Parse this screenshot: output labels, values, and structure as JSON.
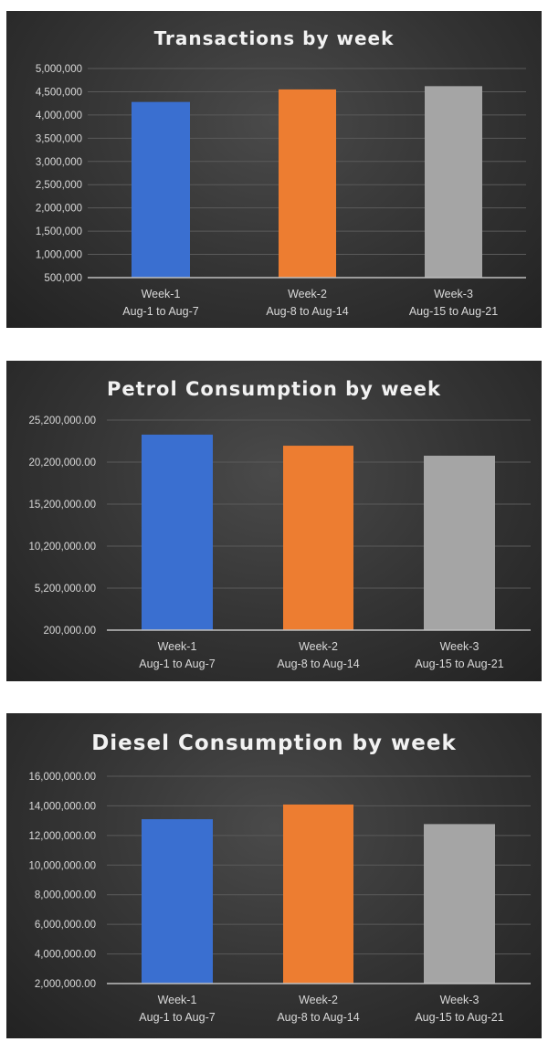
{
  "chart_data": [
    {
      "type": "bar",
      "title": "Transactions by week",
      "categories": [
        [
          "Week-1",
          "Aug-1 to Aug-7"
        ],
        [
          "Week-2",
          "Aug-8 to Aug-14"
        ],
        [
          "Week-3",
          "Aug-15 to Aug-21"
        ]
      ],
      "values": [
        4280000,
        4550000,
        4620000
      ],
      "yticks": [
        "500,000",
        "1,000,000",
        "1,500,000",
        "2,000,000",
        "2,500,000",
        "3,000,000",
        "3,500,000",
        "4,000,000",
        "4,500,000",
        "5,000,000"
      ],
      "ylim": [
        500000,
        5000000
      ],
      "grid": true,
      "colors": [
        "#3a6fd0",
        "#ed7d31",
        "#a5a5a5"
      ]
    },
    {
      "type": "bar",
      "title": "Petrol Consumption by week",
      "categories": [
        [
          "Week-1",
          "Aug-1 to Aug-7"
        ],
        [
          "Week-2",
          "Aug-8 to Aug-14"
        ],
        [
          "Week-3",
          "Aug-15 to Aug-21"
        ]
      ],
      "values": [
        23470000,
        22150000,
        20960000
      ],
      "yticks": [
        "200,000.00",
        "5,200,000.00",
        "10,200,000.00",
        "15,200,000.00",
        "20,200,000.00",
        "25,200,000.00"
      ],
      "ylim": [
        200000,
        25200000
      ],
      "grid": true,
      "colors": [
        "#3a6fd0",
        "#ed7d31",
        "#a5a5a5"
      ]
    },
    {
      "type": "bar",
      "title": "Diesel Consumption by week",
      "categories": [
        [
          "Week-1",
          "Aug-1 to Aug-7"
        ],
        [
          "Week-2",
          "Aug-8 to Aug-14"
        ],
        [
          "Week-3",
          "Aug-15 to Aug-21"
        ]
      ],
      "values": [
        13100000,
        14090000,
        12770000
      ],
      "yticks": [
        "2,000,000.00",
        "4,000,000.00",
        "6,000,000.00",
        "8,000,000.00",
        "10,000,000.00",
        "12,000,000.00",
        "14,000,000.00",
        "16,000,000.00"
      ],
      "ylim": [
        2000000,
        16000000
      ],
      "grid": true,
      "colors": [
        "#3a6fd0",
        "#ed7d31",
        "#a5a5a5"
      ]
    }
  ]
}
